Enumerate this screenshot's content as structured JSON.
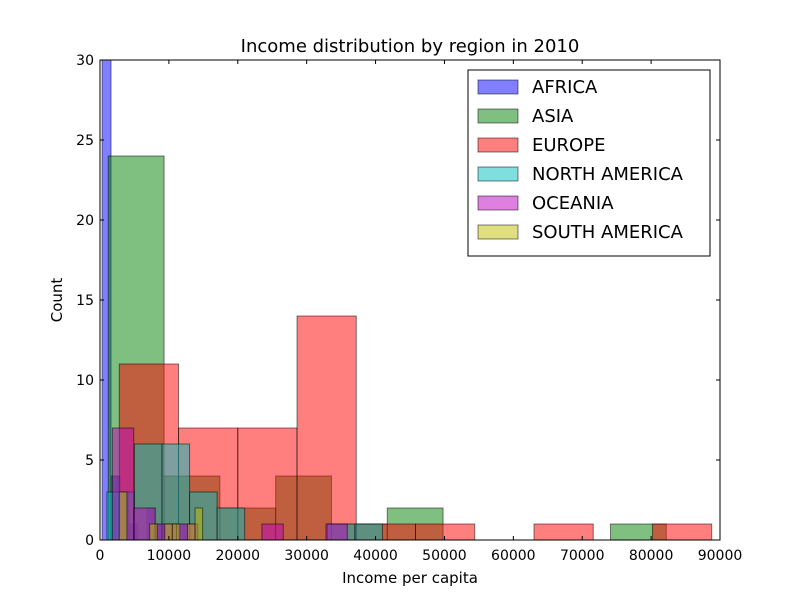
{
  "chart_data": {
    "type": "bar",
    "title": "Income distribution by region in 2010",
    "xlabel": "Income per capita",
    "ylabel": "Count",
    "xlim": [
      0,
      90000
    ],
    "ylim": [
      0,
      30
    ],
    "xticks": [
      0,
      10000,
      20000,
      30000,
      40000,
      50000,
      60000,
      70000,
      80000,
      90000
    ],
    "yticks": [
      0,
      5,
      10,
      15,
      20,
      25,
      30
    ],
    "grid": false,
    "legend_position": "top-right",
    "series": [
      {
        "name": "AFRICA",
        "color": "#0000ff",
        "bins": [
          {
            "x0": 300,
            "x1": 1600,
            "count": 30
          },
          {
            "x0": 1600,
            "x1": 2900,
            "count": 4
          },
          {
            "x0": 2900,
            "x1": 4200,
            "count": 3
          },
          {
            "x0": 4200,
            "x1": 5500,
            "count": 1
          },
          {
            "x0": 5500,
            "x1": 6800,
            "count": 0
          },
          {
            "x0": 6800,
            "x1": 8100,
            "count": 2
          },
          {
            "x0": 8100,
            "x1": 9400,
            "count": 1
          },
          {
            "x0": 9400,
            "x1": 10700,
            "count": 0
          },
          {
            "x0": 10700,
            "x1": 12000,
            "count": 0
          },
          {
            "x0": 12000,
            "x1": 13300,
            "count": 1
          }
        ]
      },
      {
        "name": "ASIA",
        "color": "#008000",
        "bins": [
          {
            "x0": 1200,
            "x1": 9300,
            "count": 24
          },
          {
            "x0": 9300,
            "x1": 17400,
            "count": 4
          },
          {
            "x0": 17400,
            "x1": 25500,
            "count": 2
          },
          {
            "x0": 25500,
            "x1": 33600,
            "count": 4
          },
          {
            "x0": 33600,
            "x1": 41700,
            "count": 1
          },
          {
            "x0": 41700,
            "x1": 49800,
            "count": 2
          },
          {
            "x0": 49800,
            "x1": 57900,
            "count": 0
          },
          {
            "x0": 57900,
            "x1": 66000,
            "count": 0
          },
          {
            "x0": 66000,
            "x1": 74100,
            "count": 0
          },
          {
            "x0": 74100,
            "x1": 82200,
            "count": 1
          }
        ]
      },
      {
        "name": "EUROPE",
        "color": "#ff0000",
        "bins": [
          {
            "x0": 2800,
            "x1": 11400,
            "count": 11
          },
          {
            "x0": 11400,
            "x1": 20000,
            "count": 7
          },
          {
            "x0": 20000,
            "x1": 28600,
            "count": 7
          },
          {
            "x0": 28600,
            "x1": 37200,
            "count": 14
          },
          {
            "x0": 37200,
            "x1": 45800,
            "count": 1
          },
          {
            "x0": 45800,
            "x1": 54400,
            "count": 1
          },
          {
            "x0": 54400,
            "x1": 63000,
            "count": 0
          },
          {
            "x0": 63000,
            "x1": 71600,
            "count": 1
          },
          {
            "x0": 71600,
            "x1": 80200,
            "count": 0
          },
          {
            "x0": 80200,
            "x1": 88800,
            "count": 1
          }
        ]
      },
      {
        "name": "NORTH AMERICA",
        "color": "#00bfbf",
        "bins": [
          {
            "x0": 1000,
            "x1": 5000,
            "count": 3
          },
          {
            "x0": 5000,
            "x1": 9000,
            "count": 6
          },
          {
            "x0": 9000,
            "x1": 13000,
            "count": 6
          },
          {
            "x0": 13000,
            "x1": 17000,
            "count": 3
          },
          {
            "x0": 17000,
            "x1": 21000,
            "count": 2
          },
          {
            "x0": 21000,
            "x1": 25000,
            "count": 0
          },
          {
            "x0": 25000,
            "x1": 29000,
            "count": 0
          },
          {
            "x0": 29000,
            "x1": 33000,
            "count": 0
          },
          {
            "x0": 33000,
            "x1": 37000,
            "count": 1
          },
          {
            "x0": 37000,
            "x1": 41000,
            "count": 1
          }
        ]
      },
      {
        "name": "OCEANIA",
        "color": "#bf00bf",
        "bins": [
          {
            "x0": 1800,
            "x1": 4900,
            "count": 7
          },
          {
            "x0": 4900,
            "x1": 8000,
            "count": 2
          },
          {
            "x0": 8000,
            "x1": 11100,
            "count": 1
          },
          {
            "x0": 11100,
            "x1": 14200,
            "count": 1
          },
          {
            "x0": 14200,
            "x1": 17300,
            "count": 0
          },
          {
            "x0": 17300,
            "x1": 20400,
            "count": 0
          },
          {
            "x0": 20400,
            "x1": 23500,
            "count": 0
          },
          {
            "x0": 23500,
            "x1": 26600,
            "count": 1
          },
          {
            "x0": 26600,
            "x1": 29700,
            "count": 0
          },
          {
            "x0": 29700,
            "x1": 32800,
            "count": 0
          },
          {
            "x0": 32800,
            "x1": 35900,
            "count": 1
          }
        ]
      },
      {
        "name": "SOUTH AMERICA",
        "color": "#bfbf00",
        "bins": [
          {
            "x0": 2800,
            "x1": 3900,
            "count": 3
          },
          {
            "x0": 3900,
            "x1": 5000,
            "count": 0
          },
          {
            "x0": 5000,
            "x1": 6100,
            "count": 0
          },
          {
            "x0": 6100,
            "x1": 7200,
            "count": 0
          },
          {
            "x0": 7200,
            "x1": 8300,
            "count": 1
          },
          {
            "x0": 8300,
            "x1": 9400,
            "count": 0
          },
          {
            "x0": 9400,
            "x1": 10500,
            "count": 1
          },
          {
            "x0": 10500,
            "x1": 11600,
            "count": 1
          },
          {
            "x0": 11600,
            "x1": 12700,
            "count": 0
          },
          {
            "x0": 12700,
            "x1": 13800,
            "count": 1
          },
          {
            "x0": 13800,
            "x1": 14900,
            "count": 2
          }
        ]
      }
    ]
  }
}
